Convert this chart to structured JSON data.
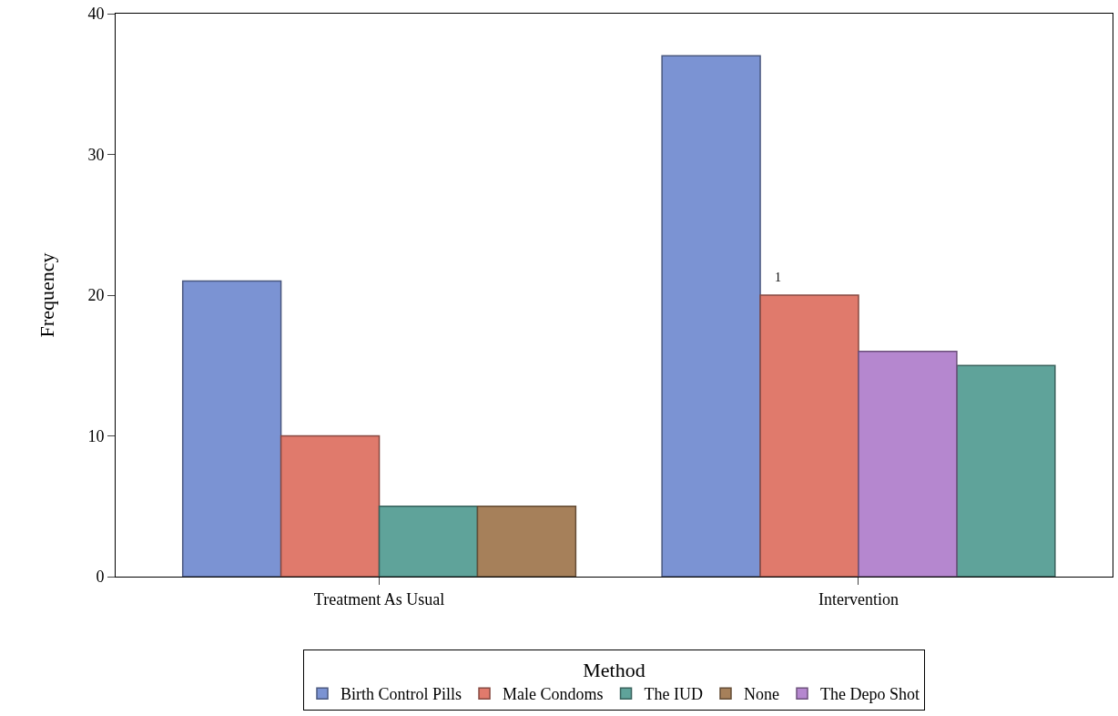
{
  "chart_data": {
    "type": "bar",
    "ylabel": "Frequency",
    "legend_title": "Method",
    "categories": [
      "Treatment As Usual",
      "Intervention"
    ],
    "series": [
      {
        "name": "Birth Control Pills",
        "color": "#7b93d3",
        "values": [
          21,
          37
        ]
      },
      {
        "name": "Male Condoms",
        "color": "#e07a6c",
        "values": [
          10,
          20
        ]
      },
      {
        "name": "The IUD",
        "color": "#5fa39a",
        "values": [
          5,
          15
        ]
      },
      {
        "name": "None",
        "color": "#a6805a",
        "values": [
          5,
          null
        ]
      },
      {
        "name": "The Depo Shot",
        "color": "#b587cf",
        "values": [
          null,
          16
        ]
      }
    ],
    "ylim": [
      0,
      40
    ],
    "yticks": [
      0,
      10,
      20,
      30,
      40
    ],
    "grid": false,
    "legend": "bottom",
    "annotations": [
      "1"
    ]
  }
}
